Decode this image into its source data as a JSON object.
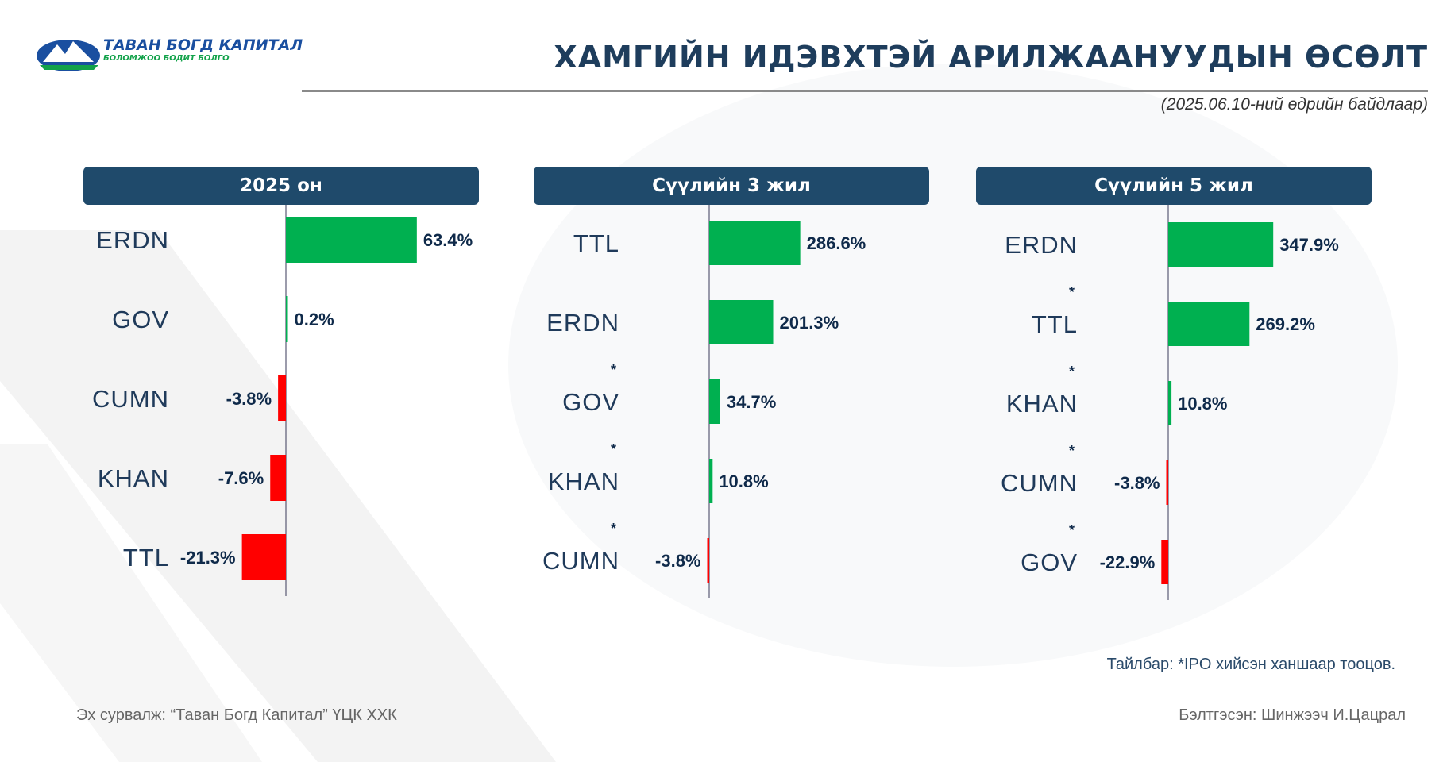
{
  "header": {
    "logo_text": "ТАВАН БОГД КАПИТАЛ",
    "logo_slogan": "БОЛОМЖОО БОДИТ БОЛГО",
    "title": "ХАМГИЙН ИДЭВХТЭЙ АРИЛЖААНУУДЫН ӨСӨЛТ",
    "date_note": "(2025.06.10-ний өдрийн байдлаар)"
  },
  "colors": {
    "positive": "#00b050",
    "negative": "#ff0000",
    "header_bg": "#1f4a6b",
    "label_text": "#1f3a5a",
    "value_text": "#0f2a4a"
  },
  "chart_data": [
    {
      "type": "bar",
      "orientation": "horizontal",
      "title": "2025 он",
      "categories": [
        "ERDN",
        "GOV",
        "CUMN",
        "KHAN",
        "TTL"
      ],
      "values": [
        63.4,
        0.2,
        -3.8,
        -7.6,
        -21.3
      ],
      "value_labels": [
        "63.4%",
        "0.2%",
        "-3.8%",
        "-7.6%",
        "-21.3%"
      ],
      "ipo_marked": [
        false,
        false,
        false,
        false,
        false
      ],
      "grid": false
    },
    {
      "type": "bar",
      "orientation": "horizontal",
      "title": "Сүүлийн 3 жил",
      "categories": [
        "TTL",
        "ERDN",
        "GOV",
        "KHAN",
        "CUMN"
      ],
      "values": [
        286.6,
        201.3,
        34.7,
        10.8,
        -3.8
      ],
      "value_labels": [
        "286.6%",
        "201.3%",
        "34.7%",
        "10.8%",
        "-3.8%"
      ],
      "ipo_marked": [
        false,
        false,
        true,
        true,
        true
      ],
      "grid": false
    },
    {
      "type": "bar",
      "orientation": "horizontal",
      "title": "Сүүлийн 5 жил",
      "categories": [
        "ERDN",
        "TTL",
        "KHAN",
        "CUMN",
        "GOV"
      ],
      "values": [
        347.9,
        269.2,
        10.8,
        -3.8,
        -22.9
      ],
      "value_labels": [
        "347.9%",
        "269.2%",
        "10.8%",
        "-3.8%",
        "-22.9%"
      ],
      "ipo_marked": [
        false,
        true,
        true,
        true,
        true
      ],
      "grid": false
    }
  ],
  "footer": {
    "note": "Тайлбар: *IPO хийсэн ханшаар тооцов.",
    "source": "Эх сурвалж: “Таван Богд Капитал” ҮЦК ХХК",
    "author": "Бэлтгэсэн: Шинжээч И.Цацрал"
  }
}
